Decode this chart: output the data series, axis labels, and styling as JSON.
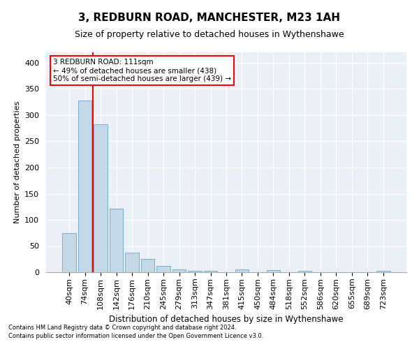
{
  "title": "3, REDBURN ROAD, MANCHESTER, M23 1AH",
  "subtitle": "Size of property relative to detached houses in Wythenshawe",
  "xlabel": "Distribution of detached houses by size in Wythenshawe",
  "ylabel": "Number of detached properties",
  "footnote1": "Contains HM Land Registry data © Crown copyright and database right 2024.",
  "footnote2": "Contains public sector information licensed under the Open Government Licence v3.0.",
  "bar_labels": [
    "40sqm",
    "74sqm",
    "108sqm",
    "142sqm",
    "176sqm",
    "210sqm",
    "245sqm",
    "279sqm",
    "313sqm",
    "347sqm",
    "381sqm",
    "415sqm",
    "450sqm",
    "484sqm",
    "518sqm",
    "552sqm",
    "586sqm",
    "620sqm",
    "655sqm",
    "689sqm",
    "723sqm"
  ],
  "bar_values": [
    75,
    328,
    283,
    121,
    38,
    25,
    12,
    5,
    3,
    3,
    0,
    5,
    0,
    4,
    0,
    3,
    0,
    0,
    0,
    0,
    3
  ],
  "bar_color": "#c5d8e8",
  "bar_edge_color": "#7aaec8",
  "vline_x": 1.5,
  "vline_color": "red",
  "vline_label_title": "3 REDBURN ROAD: 111sqm",
  "vline_annotation_line1": "← 49% of detached houses are smaller (438)",
  "vline_annotation_line2": "50% of semi-detached houses are larger (439) →",
  "annotation_box_color": "red",
  "ylim": [
    0,
    420
  ],
  "yticks": [
    0,
    50,
    100,
    150,
    200,
    250,
    300,
    350,
    400
  ],
  "background_color": "#eaf0f6",
  "grid_color": "white",
  "title_fontsize": 11,
  "subtitle_fontsize": 9,
  "ylabel_fontsize": 8,
  "xlabel_fontsize": 8.5,
  "tick_fontsize": 8,
  "annot_fontsize": 7.5,
  "footnote_fontsize": 6
}
